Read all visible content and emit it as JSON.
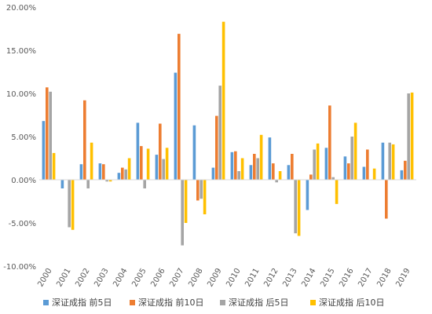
{
  "chart_data": {
    "type": "bar",
    "title": "",
    "xlabel": "",
    "ylabel": "",
    "ylim": [
      -10,
      20
    ],
    "y_ticks": [
      -10,
      -5,
      0,
      5,
      10,
      15,
      20
    ],
    "y_tick_labels": [
      "-10.00%",
      "-5.00%",
      "0.00%",
      "5.00%",
      "10.00%",
      "15.00%",
      "20.00%"
    ],
    "grid": false,
    "legend_position": "bottom",
    "categories": [
      "2000",
      "2001",
      "2002",
      "2003",
      "2004",
      "2005",
      "2006",
      "2007",
      "2008",
      "2009",
      "2010",
      "2011",
      "2012",
      "2013",
      "2014",
      "2015",
      "2016",
      "2017",
      "2018",
      "2019"
    ],
    "series": [
      {
        "name": "深证成指 前5日",
        "color": "#5b9bd5",
        "values": [
          6.8,
          -1.0,
          1.8,
          1.9,
          0.8,
          6.6,
          2.9,
          12.4,
          6.3,
          1.4,
          3.2,
          1.7,
          4.9,
          1.7,
          -3.5,
          3.7,
          2.7,
          1.5,
          4.3,
          1.1
        ]
      },
      {
        "name": "深证成指 前10日",
        "color": "#ed7d31",
        "values": [
          10.7,
          0.0,
          9.2,
          1.8,
          1.4,
          3.9,
          6.5,
          16.9,
          -2.4,
          7.4,
          3.3,
          3.0,
          1.9,
          3.0,
          0.6,
          8.6,
          1.9,
          3.5,
          -4.5,
          2.2
        ]
      },
      {
        "name": "深证成指 后5日",
        "color": "#a5a5a5",
        "values": [
          10.2,
          -5.5,
          -1.0,
          -0.2,
          1.2,
          -1.0,
          2.4,
          -7.6,
          -2.2,
          10.9,
          1.0,
          2.5,
          -0.3,
          -6.2,
          3.5,
          0.3,
          5.0,
          0.0,
          4.3,
          10.0
        ]
      },
      {
        "name": "深证成指 后10日",
        "color": "#ffc000",
        "values": [
          3.1,
          -5.8,
          4.3,
          -0.2,
          2.5,
          3.6,
          3.7,
          -5.0,
          -4.0,
          18.3,
          2.5,
          5.2,
          1.0,
          -6.5,
          4.2,
          -2.8,
          6.6,
          1.3,
          4.1,
          10.1
        ]
      }
    ]
  }
}
